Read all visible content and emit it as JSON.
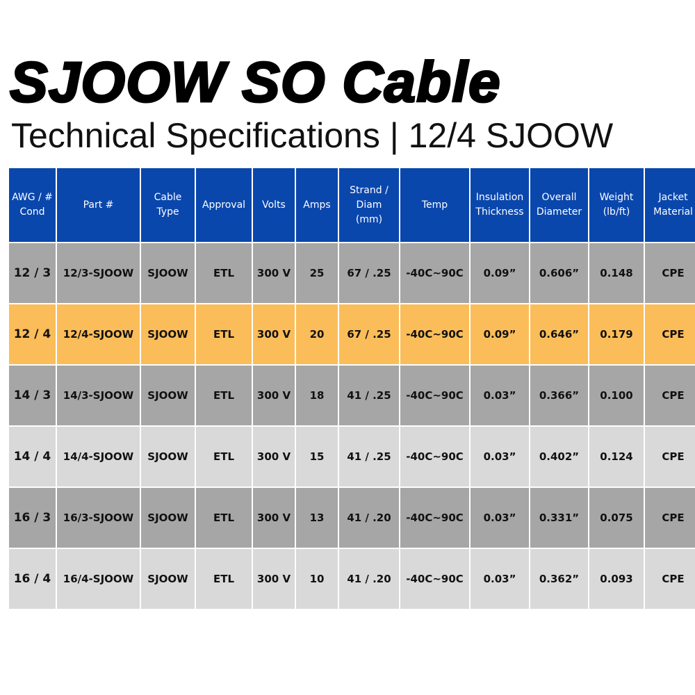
{
  "header": {
    "title": "SJOOW SO Cable",
    "subtitle": "Technical Specifications | 12/4 SJOOW"
  },
  "table": {
    "columns": [
      [
        "AWG / #",
        "Cond"
      ],
      [
        "Part #"
      ],
      [
        "Cable",
        "Type"
      ],
      [
        "Approval"
      ],
      [
        "Volts"
      ],
      [
        "Amps"
      ],
      [
        "Strand /",
        "Diam",
        "(mm)"
      ],
      [
        "Temp"
      ],
      [
        "Insulation",
        "Thickness"
      ],
      [
        "Overall",
        "Diameter"
      ],
      [
        "Weight",
        "(lb/ft)"
      ],
      [
        "Jacket",
        "Material"
      ]
    ],
    "rows": [
      [
        "12 / 3",
        "12/3-SJOOW",
        "SJOOW",
        "ETL",
        "300 V",
        "25",
        "67 / .25",
        "-40C~90C",
        "0.09”",
        "0.606”",
        "0.148",
        "CPE"
      ],
      [
        "12 / 4",
        "12/4-SJOOW",
        "SJOOW",
        "ETL",
        "300 V",
        "20",
        "67 / .25",
        "-40C~90C",
        "0.09”",
        "0.646”",
        "0.179",
        "CPE"
      ],
      [
        "14 / 3",
        "14/3-SJOOW",
        "SJOOW",
        "ETL",
        "300 V",
        "18",
        "41 / .25",
        "-40C~90C",
        "0.03”",
        "0.366”",
        "0.100",
        "CPE"
      ],
      [
        "14 / 4",
        "14/4-SJOOW",
        "SJOOW",
        "ETL",
        "300 V",
        "15",
        "41 / .25",
        "-40C~90C",
        "0.03”",
        "0.402”",
        "0.124",
        "CPE"
      ],
      [
        "16 / 3",
        "16/3-SJOOW",
        "SJOOW",
        "ETL",
        "300 V",
        "13",
        "41 / .20",
        "-40C~90C",
        "0.03”",
        "0.331”",
        "0.075",
        "CPE"
      ],
      [
        "16 / 4",
        "16/4-SJOOW",
        "SJOOW",
        "ETL",
        "300 V",
        "10",
        "41 / .20",
        "-40C~90C",
        "0.03”",
        "0.362”",
        "0.093",
        "CPE"
      ]
    ]
  }
}
